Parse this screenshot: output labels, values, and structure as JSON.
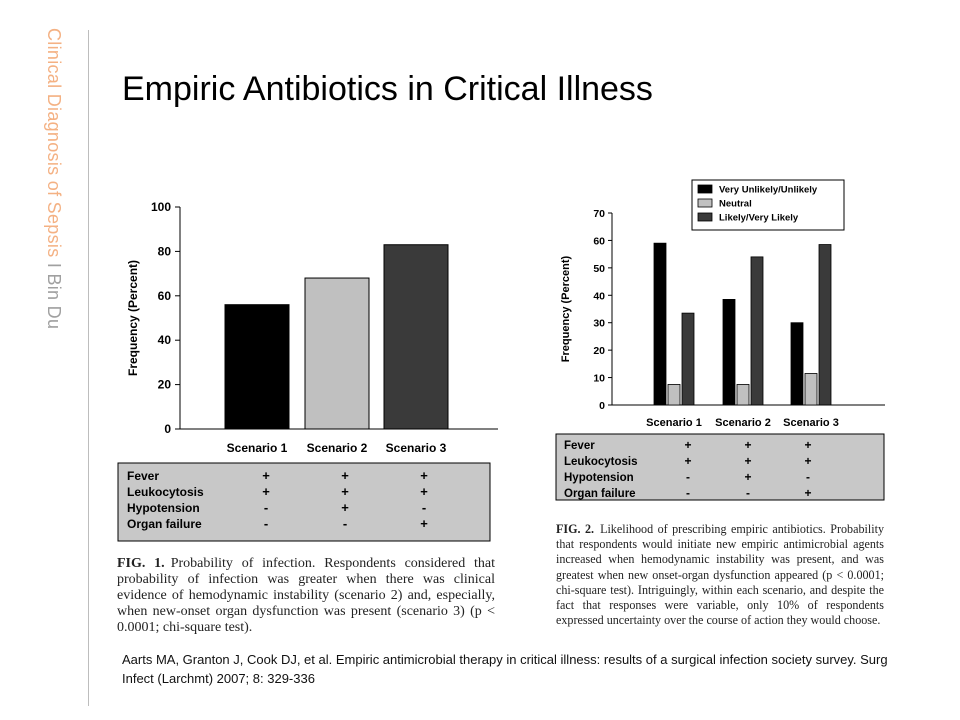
{
  "sidebar": {
    "topic": "Clinical Diagnosis of Sepsis",
    "separator": "I",
    "author": "Bin Du"
  },
  "slide": {
    "title": "Empiric Antibiotics in Critical Illness"
  },
  "reference": "Aarts MA, Granton J, Cook DJ, et al. Empiric antimicrobial therapy in critical illness: results of a surgical infection society survey. Surg Infect (Larchmt) 2007; 8: 329-336",
  "colors": {
    "accent": "#f4b183",
    "bar_black": "#000000",
    "bar_light": "#c0c0c0",
    "bar_dark": "#3a3a3a",
    "table_bg": "#c8c8c8"
  },
  "chart_data": [
    {
      "type": "bar",
      "ylabel": "Frequency (Percent)",
      "ylim": [
        0,
        100
      ],
      "yticks": [
        "0",
        "20",
        "40",
        "60",
        "80",
        "100"
      ],
      "categories": [
        "Scenario 1",
        "Scenario 2",
        "Scenario 3"
      ],
      "values": [
        56,
        68,
        83
      ],
      "bar_colors": [
        "#000000",
        "#c0c0c0",
        "#3a3a3a"
      ],
      "table": {
        "rows": [
          {
            "label": "Fever",
            "cells": [
              "+",
              "+",
              "+"
            ]
          },
          {
            "label": "Leukocytosis",
            "cells": [
              "+",
              "+",
              "+"
            ]
          },
          {
            "label": "Hypotension",
            "cells": [
              "-",
              "+",
              "-"
            ]
          },
          {
            "label": "Organ failure",
            "cells": [
              "-",
              "-",
              "+"
            ]
          }
        ]
      },
      "caption": {
        "label": "FIG. 1.",
        "text": "Probability of infection. Respondents considered that probability of infection was greater when there was clinical evidence of hemodynamic instability (scenario 2) and, especially, when new-onset organ dysfunction was present (scenario 3) (p < 0.0001; chi-square test)."
      }
    },
    {
      "type": "bar",
      "ylabel": "Frequency (Percent)",
      "ylim": [
        0,
        70
      ],
      "yticks": [
        "0",
        "10",
        "20",
        "30",
        "40",
        "50",
        "60",
        "70"
      ],
      "categories": [
        "Scenario 1",
        "Scenario 2",
        "Scenario 3"
      ],
      "series": [
        {
          "name": "Very Unlikely/Unlikely",
          "values": [
            59,
            38.5,
            30
          ],
          "color": "#000000"
        },
        {
          "name": "Neutral",
          "values": [
            7.5,
            7.5,
            11.5
          ],
          "color": "#c0c0c0"
        },
        {
          "name": "Likely/Very Likely",
          "values": [
            33.5,
            54,
            58.5
          ],
          "color": "#3a3a3a"
        }
      ],
      "legend": "top-right",
      "table": {
        "rows": [
          {
            "label": "Fever",
            "cells": [
              "+",
              "+",
              "+"
            ]
          },
          {
            "label": "Leukocytosis",
            "cells": [
              "+",
              "+",
              "+"
            ]
          },
          {
            "label": "Hypotension",
            "cells": [
              "-",
              "+",
              "-"
            ]
          },
          {
            "label": "Organ failure",
            "cells": [
              "-",
              "-",
              "+"
            ]
          }
        ]
      },
      "caption": {
        "label": "FIG. 2.",
        "text": "Likelihood of prescribing empiric antibiotics. Probability that respondents would initiate new empiric antimicrobial agents increased when hemodynamic instability was present, and was greatest when new onset-organ dysfunction appeared (p < 0.0001; chi-square test). Intriguingly, within each scenario, and despite the fact that responses were variable, only 10% of respondents expressed uncertainty over the course of action they would choose."
      }
    }
  ]
}
